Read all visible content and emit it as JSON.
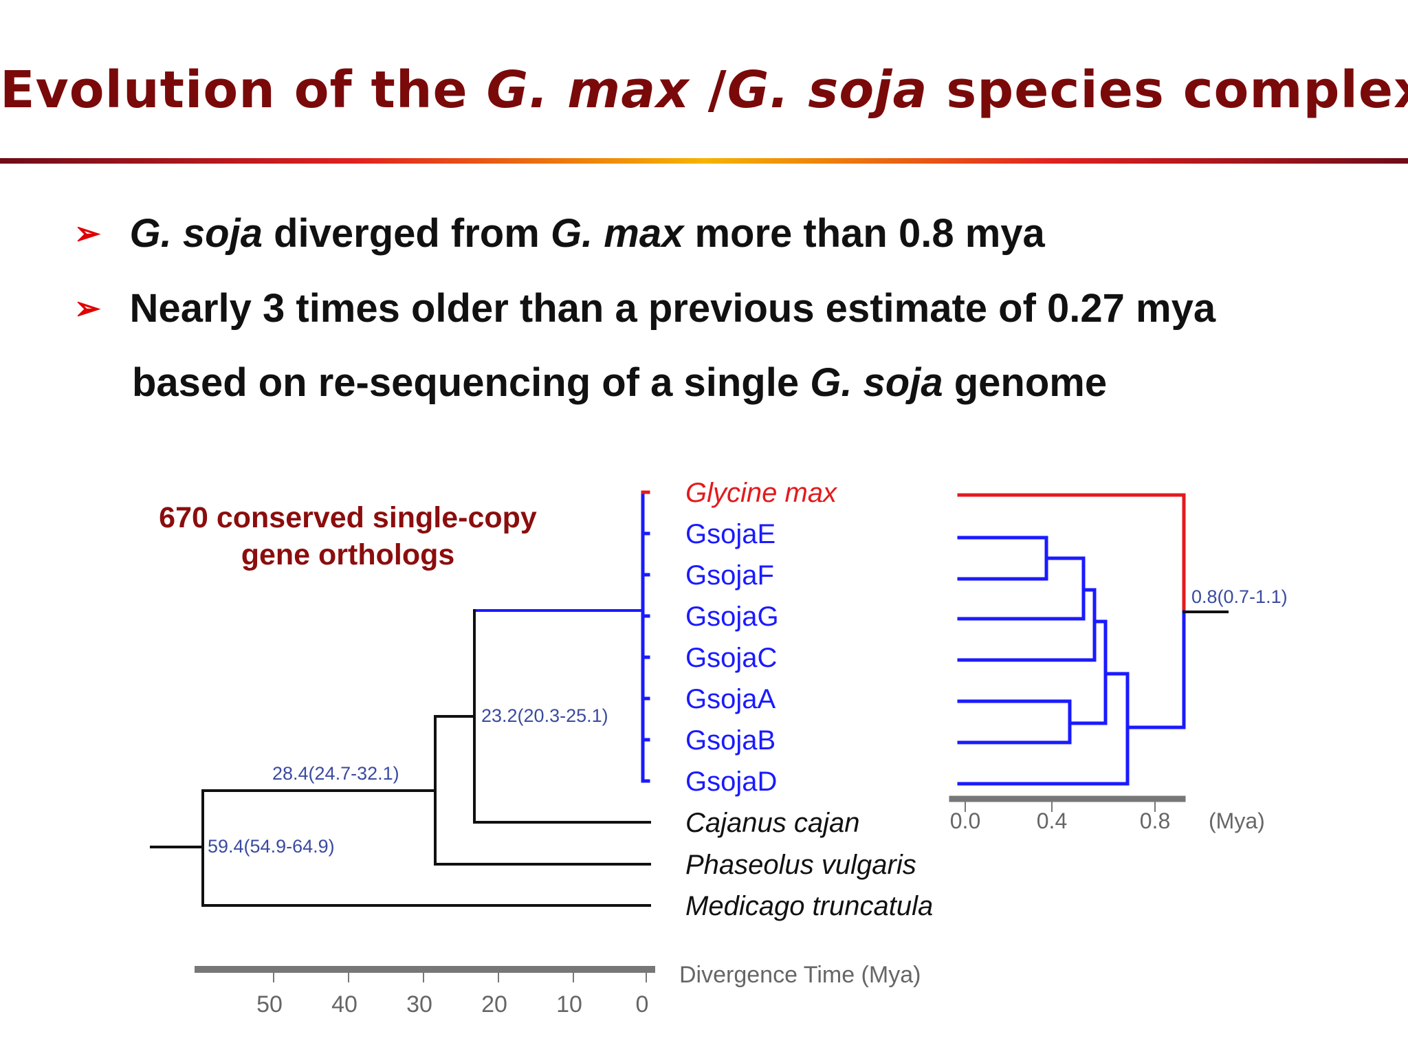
{
  "title": {
    "part1": "Evolution of the ",
    "part2": "G. max",
    "part3": " /",
    "part4": "G. soja",
    "part5": " species complex"
  },
  "bullets": [
    {
      "p1": "G. soja",
      "p2": " diverged from ",
      "p3": "G. max",
      "p4": " more than 0.8 mya"
    },
    {
      "p1": "Nearly 3 times older than a previous estimate of 0.27 mya"
    },
    {
      "p1": "based on re-sequencing of a single ",
      "p2": "G. soja",
      "p3": " genome"
    }
  ],
  "note": {
    "line1": "670 conserved single-copy",
    "line2": "gene orthologs"
  },
  "tree": {
    "taxa": [
      {
        "label": "Glycine max",
        "color": "#e31a1c",
        "italic": true
      },
      {
        "label": "GsojaE",
        "color": "#1a1aff",
        "italic": false
      },
      {
        "label": "GsojaF",
        "color": "#1a1aff",
        "italic": false
      },
      {
        "label": "GsojaG",
        "color": "#1a1aff",
        "italic": false
      },
      {
        "label": "GsojaC",
        "color": "#1a1aff",
        "italic": false
      },
      {
        "label": "GsojaA",
        "color": "#1a1aff",
        "italic": false
      },
      {
        "label": "GsojaB",
        "color": "#1a1aff",
        "italic": false
      },
      {
        "label": "GsojaD",
        "color": "#1a1aff",
        "italic": false
      },
      {
        "label": "Cajanus cajan",
        "color": "#111111",
        "italic": true
      },
      {
        "label": "Phaseolus vulgaris",
        "color": "#111111",
        "italic": true
      },
      {
        "label": "Medicago truncatula",
        "color": "#111111",
        "italic": true
      }
    ],
    "node_labels": [
      {
        "text": "59.4(54.9-64.9)"
      },
      {
        "text": "28.4(24.7-32.1)"
      },
      {
        "text": "23.2(20.3-25.1)"
      },
      {
        "text": "0.8(0.7-1.1)"
      }
    ],
    "main_axis": {
      "ticks": [
        "50",
        "40",
        "30",
        "20",
        "10",
        "0"
      ],
      "label": "Divergence Time (Mya)"
    },
    "inset_axis": {
      "ticks": [
        "0.0",
        "0.4",
        "0.8"
      ],
      "unit": "(Mya)"
    },
    "colors": {
      "glycine_max": "#e31a1c",
      "soja": "#1a1aff",
      "outgroup": "#111111",
      "node_label": "#3a4aa0",
      "axis_bar": "#777777",
      "axis_text": "#666666"
    }
  }
}
